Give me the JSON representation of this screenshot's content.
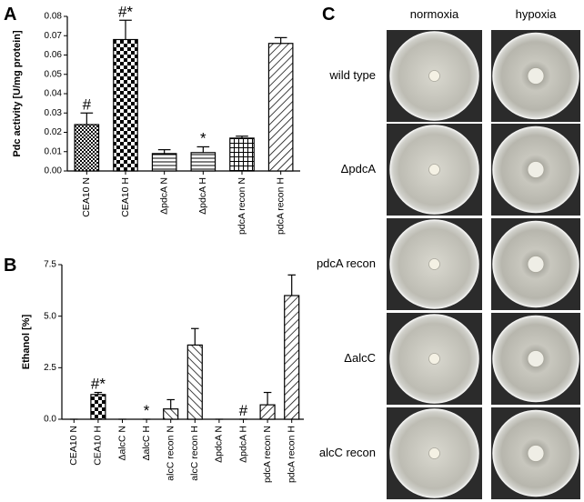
{
  "chart_data": [
    {
      "type": "bar",
      "panel_label": "A",
      "ylabel": "Pdc activity [U/mg protein]",
      "categories": [
        "CEA10 N",
        "CEA10 H",
        "ΔpdcA N",
        "ΔpdcA H",
        "pdcA recon N",
        "pdcA recon H"
      ],
      "values": [
        0.024,
        0.068,
        0.009,
        0.0095,
        0.017,
        0.066
      ],
      "errors": [
        0.006,
        0.01,
        0.002,
        0.003,
        0.001,
        0.003
      ],
      "value_annotations": [
        "#",
        "#*",
        null,
        "*",
        null,
        null
      ],
      "color": "#000000",
      "ylim": [
        0,
        0.08
      ],
      "yticks": [
        {
          "value": 0,
          "label": "0.00"
        },
        0.01,
        0.02,
        0.03,
        0.04,
        0.05,
        0.06,
        0.07,
        0.08
      ]
    },
    {
      "type": "bar",
      "panel_label": "B",
      "ylabel": "Ethanol [%]",
      "categories": [
        "CEA10 N",
        "CEA10 H",
        "ΔalcC N",
        "ΔalcC H",
        "alcC recon N",
        "alcC recon H",
        "ΔpdcA N",
        "ΔpdcA H",
        "pdcA recon N",
        "pdcA recon H"
      ],
      "values": [
        0,
        1.2,
        0,
        0,
        0.5,
        3.6,
        0,
        0,
        0.7,
        6.0
      ],
      "errors": [
        0,
        0.1,
        0,
        0,
        0.45,
        0.8,
        0,
        0,
        0.6,
        1.0
      ],
      "value_annotations": [
        null,
        "#*",
        null,
        "*",
        null,
        null,
        null,
        "#",
        null,
        null
      ],
      "color": "#000000",
      "ylim": [
        0,
        7.5
      ],
      "yticks": [
        {
          "value": 0,
          "label": "0.0"
        },
        2.5,
        {
          "value": 5,
          "label": "5.0"
        },
        7.5
      ]
    }
  ],
  "photo_panel": {
    "label": "C",
    "columns": [
      "normoxia",
      "hypoxia"
    ],
    "rows": [
      "wild type",
      "ΔpdcA",
      "pdcA recon",
      "ΔalcC",
      "alcC recon"
    ]
  }
}
